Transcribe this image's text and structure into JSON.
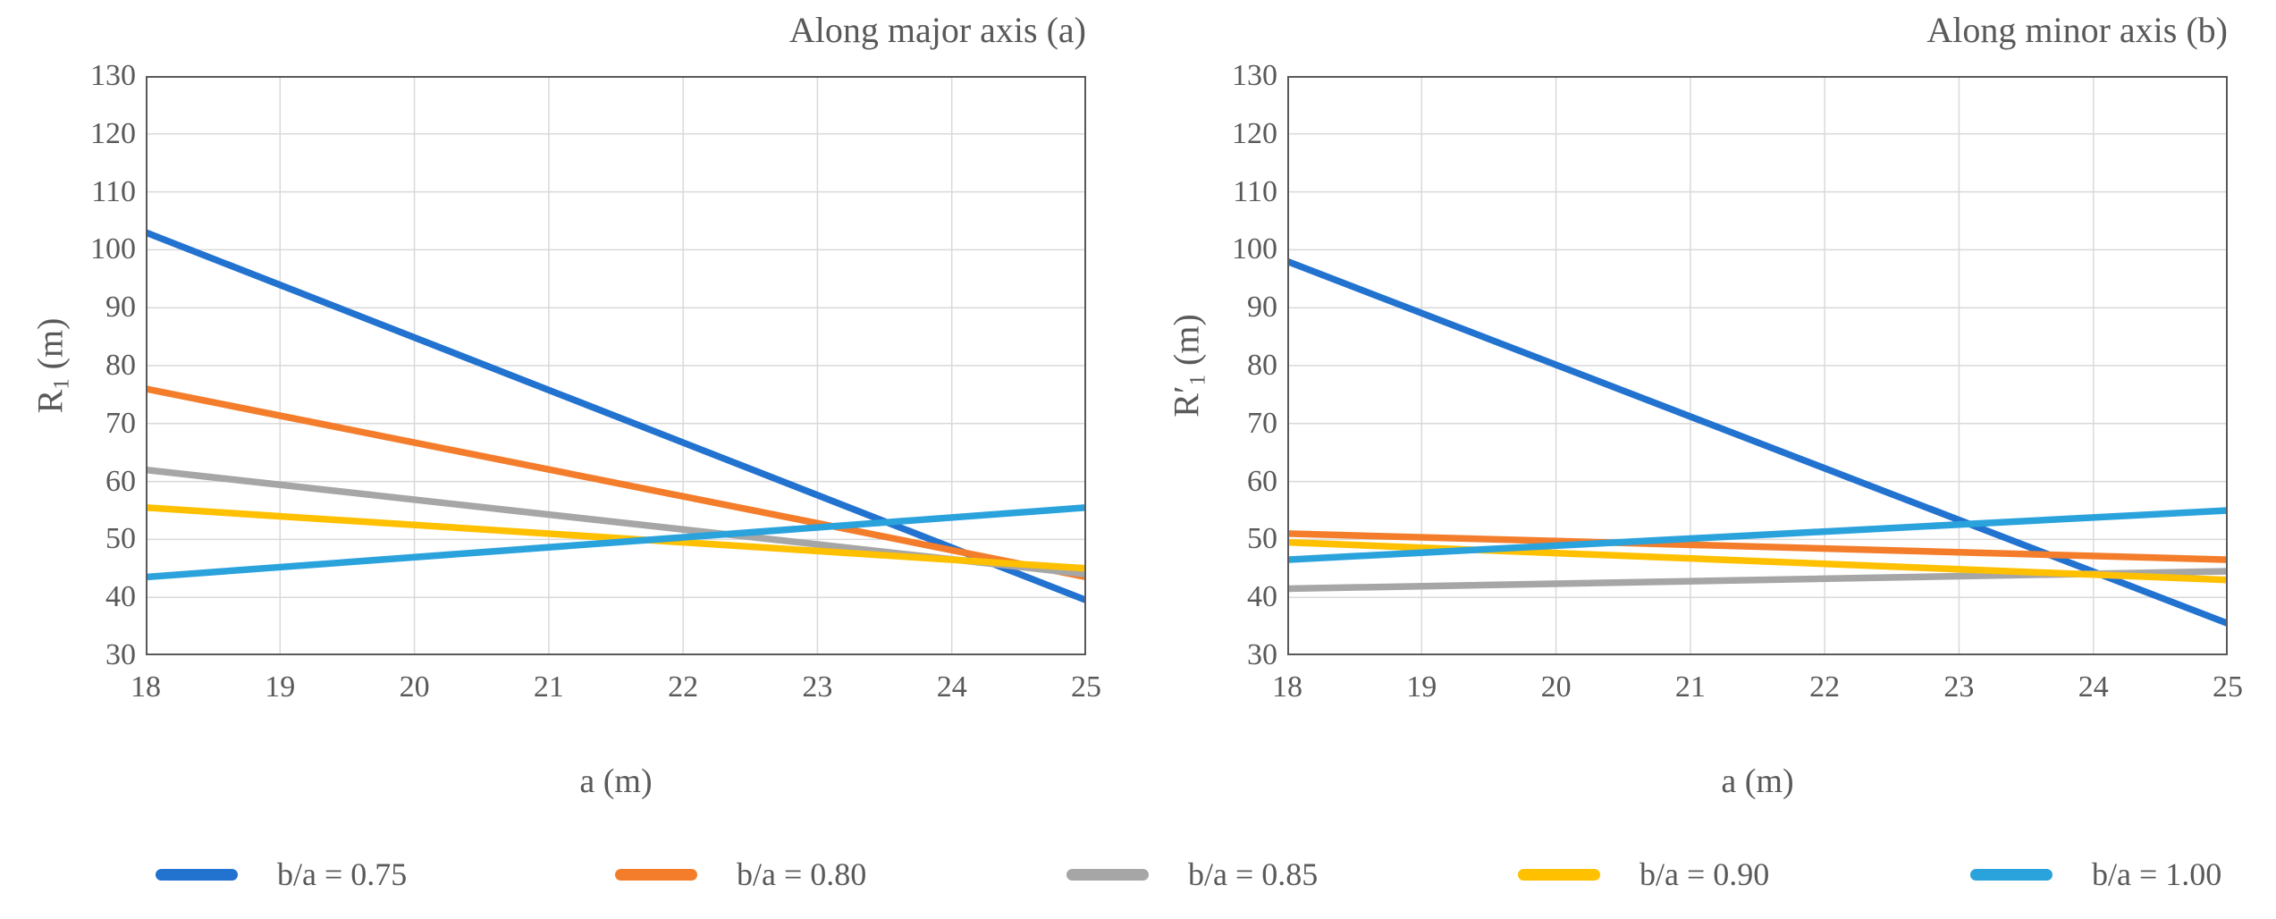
{
  "figure": {
    "background": "#ffffff",
    "text_color": "#595959",
    "grid_color": "#d9d9d9",
    "frame_color": "#595959"
  },
  "legend": {
    "position": "bottom",
    "items": [
      {
        "label": "b/a = 0.75",
        "color": "#2272D0"
      },
      {
        "label": "b/a = 0.80",
        "color": "#F47D2B"
      },
      {
        "label": "b/a = 0.85",
        "color": "#A6A6A6"
      },
      {
        "label": "b/a = 0.90",
        "color": "#FFC000"
      },
      {
        "label": "b/a = 1.00",
        "color": "#2AA2DC"
      }
    ]
  },
  "chart_data": [
    {
      "type": "line",
      "title": "Along major axis (a)",
      "xlabel": "a (m)",
      "ylabel": "R1 (m)",
      "ylabel_parts": {
        "base": "R",
        "prime": "",
        "sub": "1",
        "unit": " (m)"
      },
      "xlim": [
        18,
        25
      ],
      "ylim": [
        30,
        130
      ],
      "x_ticks": [
        18,
        19,
        20,
        21,
        22,
        23,
        24,
        25
      ],
      "y_ticks": [
        130,
        120,
        110,
        100,
        90,
        80,
        70,
        60,
        50,
        40,
        30
      ],
      "grid": true,
      "series": [
        {
          "name": "b/a = 0.75",
          "color": "#2272D0",
          "values": [
            [
              18,
              103
            ],
            [
              25,
              39.5
            ]
          ]
        },
        {
          "name": "b/a = 0.80",
          "color": "#F47D2B",
          "values": [
            [
              18,
              76
            ],
            [
              25,
              43.5
            ]
          ]
        },
        {
          "name": "b/a = 0.85",
          "color": "#A6A6A6",
          "values": [
            [
              18,
              62
            ],
            [
              25,
              44
            ]
          ]
        },
        {
          "name": "b/a = 0.90",
          "color": "#FFC000",
          "values": [
            [
              18,
              55.5
            ],
            [
              25,
              45
            ]
          ]
        },
        {
          "name": "b/a = 1.00",
          "color": "#2AA2DC",
          "values": [
            [
              18,
              43.5
            ],
            [
              25,
              55.5
            ]
          ]
        }
      ]
    },
    {
      "type": "line",
      "title": "Along minor axis (b)",
      "xlabel": "a (m)",
      "ylabel": "R′1 (m)",
      "ylabel_parts": {
        "base": "R",
        "prime": "′",
        "sub": "1",
        "unit": " (m)"
      },
      "xlim": [
        18,
        25
      ],
      "ylim": [
        30,
        130
      ],
      "x_ticks": [
        18,
        19,
        20,
        21,
        22,
        23,
        24,
        25
      ],
      "y_ticks": [
        130,
        120,
        110,
        100,
        90,
        80,
        70,
        60,
        50,
        40,
        30
      ],
      "grid": true,
      "series": [
        {
          "name": "b/a = 0.75",
          "color": "#2272D0",
          "values": [
            [
              18,
              98
            ],
            [
              25,
              35.5
            ]
          ]
        },
        {
          "name": "b/a = 0.80",
          "color": "#F47D2B",
          "values": [
            [
              18,
              51
            ],
            [
              25,
              46.5
            ]
          ]
        },
        {
          "name": "b/a = 0.85",
          "color": "#A6A6A6",
          "values": [
            [
              18,
              41.5
            ],
            [
              25,
              44.5
            ]
          ]
        },
        {
          "name": "b/a = 0.90",
          "color": "#FFC000",
          "values": [
            [
              18,
              49.5
            ],
            [
              25,
              43
            ]
          ]
        },
        {
          "name": "b/a = 1.00",
          "color": "#2AA2DC",
          "values": [
            [
              18,
              46.5
            ],
            [
              25,
              55
            ]
          ]
        }
      ]
    }
  ]
}
